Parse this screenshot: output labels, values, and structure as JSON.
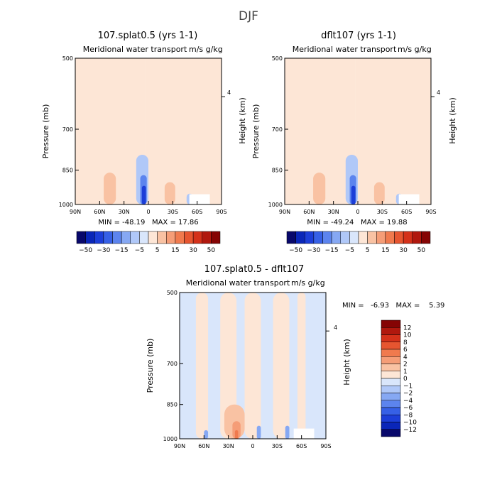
{
  "figure": {
    "title": "DJF"
  },
  "panels": [
    {
      "title": "107.splat0.5 (yrs 1-1)",
      "subtitle": "Meridional water transport",
      "units": "m/s g/kg",
      "ylabel": "Pressure (mb)",
      "ylabel_right": "Height (km)",
      "right_tick": "4",
      "stats": "MIN = -48.19   MAX = 17.86"
    },
    {
      "title": "dflt107 (yrs 1-1)",
      "subtitle": "Meridional water transport",
      "units": "m/s g/kg",
      "ylabel": "Pressure (mb)",
      "ylabel_right": "Height (km)",
      "right_tick": "4",
      "stats": "MIN = -49.24   MAX = 19.88"
    },
    {
      "title": "107.splat0.5 - dflt107",
      "subtitle": "Meridional water transport",
      "units": "m/s g/kg",
      "ylabel": "Pressure (mb)",
      "ylabel_right": "Height (km)",
      "right_tick": "4",
      "stats": "MIN =   -6.93   MAX =    5.39"
    }
  ],
  "chart_data": [
    {
      "type": "heatmap",
      "title": "107.splat0.5 (yrs 1-1)",
      "subtitle": "Meridional water transport",
      "xlabel": "",
      "ylabel": "Pressure (mb)",
      "ylabel_right": "Height (km)",
      "x_ticks": [
        "90N",
        "60N",
        "30N",
        "0",
        "30S",
        "60S",
        "90S"
      ],
      "y_ticks": [
        "500",
        "700",
        "850",
        "1000"
      ],
      "xlim": [
        90,
        -90
      ],
      "ylim": [
        1000,
        500
      ],
      "y_scale": "log-pressure",
      "colorbar_levels": [
        -50,
        -30,
        -15,
        -5,
        5,
        15,
        30,
        50
      ],
      "colorbar_colors": [
        "#08086b",
        "#0a26b8",
        "#1c3ed8",
        "#3660e6",
        "#5c84ee",
        "#86a8f3",
        "#b0c8f8",
        "#d9e6fb",
        "#fde6d6",
        "#f9c2a3",
        "#f59d77",
        "#f07a4e",
        "#e65530",
        "#d4311a",
        "#b0180e",
        "#850404"
      ],
      "regions": [
        {
          "lat": [
            90,
            3
          ],
          "p": [
            500,
            1000
          ],
          "value": 1
        },
        {
          "lat": [
            3,
            -90
          ],
          "p": [
            500,
            1000
          ],
          "value": -1
        },
        {
          "lat": [
            60,
            38
          ],
          "p": [
            640,
            1000
          ],
          "value": 4
        },
        {
          "lat": [
            55,
            40
          ],
          "p": [
            860,
            1000
          ],
          "value": 8
        },
        {
          "lat": [
            2,
            -65
          ],
          "p": [
            720,
            1000
          ],
          "value": -3
        },
        {
          "lat": [
            15,
            0
          ],
          "p": [
            790,
            1000
          ],
          "value": -6
        },
        {
          "lat": [
            10,
            2
          ],
          "p": [
            870,
            1000
          ],
          "value": -25
        },
        {
          "lat": [
            8,
            3
          ],
          "p": [
            915,
            1000
          ],
          "value": -45
        },
        {
          "lat": [
            -20,
            -33
          ],
          "p": [
            900,
            1000
          ],
          "value": 6
        },
        {
          "lat": [
            -25,
            -30
          ],
          "p": [
            950,
            1000
          ],
          "value": 14
        },
        {
          "lat": [
            -47,
            -55
          ],
          "p": [
            950,
            1000
          ],
          "value": -12
        }
      ],
      "stats": {
        "min": -48.19,
        "max": 17.86
      }
    },
    {
      "type": "heatmap",
      "title": "dflt107 (yrs 1-1)",
      "subtitle": "Meridional water transport",
      "xlabel": "",
      "ylabel": "Pressure (mb)",
      "ylabel_right": "Height (km)",
      "x_ticks": [
        "90N",
        "60N",
        "30N",
        "0",
        "30S",
        "60S",
        "90S"
      ],
      "y_ticks": [
        "500",
        "700",
        "850",
        "1000"
      ],
      "xlim": [
        90,
        -90
      ],
      "ylim": [
        1000,
        500
      ],
      "y_scale": "log-pressure",
      "colorbar_levels": [
        -50,
        -30,
        -15,
        -5,
        5,
        15,
        30,
        50
      ],
      "colorbar_colors": [
        "#08086b",
        "#0a26b8",
        "#1c3ed8",
        "#3660e6",
        "#5c84ee",
        "#86a8f3",
        "#b0c8f8",
        "#d9e6fb",
        "#fde6d6",
        "#f9c2a3",
        "#f59d77",
        "#f07a4e",
        "#e65530",
        "#d4311a",
        "#b0180e",
        "#850404"
      ],
      "regions": [
        {
          "lat": [
            90,
            3
          ],
          "p": [
            500,
            1000
          ],
          "value": 1
        },
        {
          "lat": [
            3,
            -90
          ],
          "p": [
            500,
            1000
          ],
          "value": -1
        },
        {
          "lat": [
            60,
            38
          ],
          "p": [
            640,
            1000
          ],
          "value": 4
        },
        {
          "lat": [
            55,
            40
          ],
          "p": [
            860,
            1000
          ],
          "value": 8
        },
        {
          "lat": [
            2,
            -65
          ],
          "p": [
            720,
            1000
          ],
          "value": -3
        },
        {
          "lat": [
            15,
            0
          ],
          "p": [
            790,
            1000
          ],
          "value": -6
        },
        {
          "lat": [
            10,
            2
          ],
          "p": [
            870,
            1000
          ],
          "value": -25
        },
        {
          "lat": [
            8,
            3
          ],
          "p": [
            915,
            1000
          ],
          "value": -48
        },
        {
          "lat": [
            -20,
            -33
          ],
          "p": [
            900,
            1000
          ],
          "value": 6
        },
        {
          "lat": [
            -25,
            -30
          ],
          "p": [
            950,
            1000
          ],
          "value": 15
        },
        {
          "lat": [
            -47,
            -55
          ],
          "p": [
            950,
            1000
          ],
          "value": -12
        }
      ],
      "stats": {
        "min": -49.24,
        "max": 19.88
      }
    },
    {
      "type": "heatmap",
      "title": "107.splat0.5 - dflt107",
      "subtitle": "Meridional water transport",
      "xlabel": "",
      "ylabel": "Pressure (mb)",
      "ylabel_right": "Height (km)",
      "x_ticks": [
        "90N",
        "60N",
        "30N",
        "0",
        "30S",
        "60S",
        "90S"
      ],
      "y_ticks": [
        "500",
        "700",
        "850",
        "1000"
      ],
      "xlim": [
        90,
        -90
      ],
      "ylim": [
        1000,
        500
      ],
      "y_scale": "log-pressure",
      "colorbar_levels": [
        -12,
        -10,
        -8,
        -6,
        -4,
        -2,
        -1,
        0,
        1,
        2,
        4,
        6,
        8,
        10,
        12
      ],
      "colorbar_colors": [
        "#08086b",
        "#0a26b8",
        "#1c3ed8",
        "#3660e6",
        "#5c84ee",
        "#86a8f3",
        "#b0c8f8",
        "#d9e6fb",
        "#fde6d6",
        "#f9c2a3",
        "#f59d77",
        "#f07a4e",
        "#e65530",
        "#d4311a",
        "#b0180e",
        "#850404"
      ],
      "regions": [
        {
          "lat": [
            90,
            -90
          ],
          "p": [
            500,
            1000
          ],
          "value": -0.5
        },
        {
          "lat": [
            70,
            55
          ],
          "p": [
            500,
            1000
          ],
          "value": 0.5
        },
        {
          "lat": [
            40,
            20
          ],
          "p": [
            500,
            1000
          ],
          "value": 0.5
        },
        {
          "lat": [
            10,
            -10
          ],
          "p": [
            500,
            1000
          ],
          "value": 0.5
        },
        {
          "lat": [
            -25,
            -45
          ],
          "p": [
            500,
            1000
          ],
          "value": 0.5
        },
        {
          "lat": [
            -55,
            -65
          ],
          "p": [
            500,
            1000
          ],
          "value": 0.5
        },
        {
          "lat": [
            35,
            10
          ],
          "p": [
            850,
            1000
          ],
          "value": 1.5
        },
        {
          "lat": [
            25,
            15
          ],
          "p": [
            920,
            1000
          ],
          "value": 3
        },
        {
          "lat": [
            22,
            18
          ],
          "p": [
            960,
            1000
          ],
          "value": 5
        },
        {
          "lat": [
            60,
            55
          ],
          "p": [
            960,
            1000
          ],
          "value": -3
        },
        {
          "lat": [
            -5,
            -10
          ],
          "p": [
            940,
            1000
          ],
          "value": -3
        },
        {
          "lat": [
            -40,
            -45
          ],
          "p": [
            940,
            1000
          ],
          "value": -2
        }
      ],
      "stats": {
        "min": -6.93,
        "max": 5.39
      }
    }
  ]
}
